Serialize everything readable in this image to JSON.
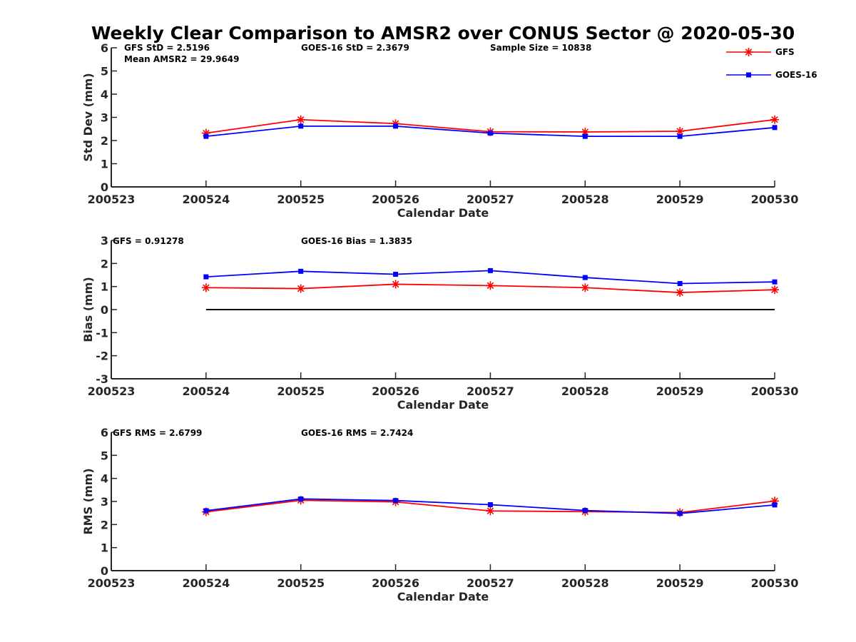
{
  "title": "Weekly Clear Comparison to AMSR2 over CONUS Sector @ 2020-05-30",
  "legend": {
    "position": "top-right",
    "entries": [
      {
        "name": "GFS",
        "color": "#ff0000",
        "marker": "asterisk"
      },
      {
        "name": "GOES-16",
        "color": "#0000ff",
        "marker": "square"
      }
    ]
  },
  "panels": [
    {
      "stats": [
        "GFS StD = 2.5196",
        "GOES-16 StD = 2.3679",
        "Sample Size = 10838",
        "Mean AMSR2 = 29.9649"
      ]
    },
    {
      "stats": [
        "GFS = 0.91278",
        "GOES-16 Bias  = 1.3835"
      ]
    },
    {
      "stats": [
        "GFS RMS = 2.6799",
        "GOES-16 RMS = 2.7424"
      ]
    }
  ],
  "chart_data": [
    {
      "type": "line",
      "xlabel": "Calendar Date",
      "ylabel": "Std Dev (mm)",
      "x_ticks": [
        "200523",
        "200524",
        "200525",
        "200526",
        "200527",
        "200528",
        "200529",
        "200530"
      ],
      "x": [
        "200524",
        "200525",
        "200526",
        "200527",
        "200528",
        "200529",
        "200530"
      ],
      "ylim": [
        0,
        6
      ],
      "yticks": [
        0,
        1,
        2,
        3,
        4,
        5,
        6
      ],
      "grid": false,
      "series": [
        {
          "name": "GFS",
          "color": "#ff0000",
          "values": [
            2.32,
            2.9,
            2.73,
            2.38,
            2.37,
            2.4,
            2.9
          ]
        },
        {
          "name": "GOES-16",
          "color": "#0000ff",
          "values": [
            2.18,
            2.62,
            2.62,
            2.32,
            2.18,
            2.18,
            2.56
          ]
        }
      ]
    },
    {
      "type": "line",
      "xlabel": "Calendar Date",
      "ylabel": "Bias (mm)",
      "x_ticks": [
        "200523",
        "200524",
        "200525",
        "200526",
        "200527",
        "200528",
        "200529",
        "200530"
      ],
      "x": [
        "200524",
        "200525",
        "200526",
        "200527",
        "200528",
        "200529",
        "200530"
      ],
      "ylim": [
        -3,
        3
      ],
      "yticks": [
        -3,
        -2,
        -1,
        0,
        1,
        2,
        3
      ],
      "grid": false,
      "reference_line": 0,
      "series": [
        {
          "name": "GFS",
          "color": "#ff0000",
          "values": [
            0.95,
            0.91,
            1.1,
            1.04,
            0.95,
            0.74,
            0.86
          ]
        },
        {
          "name": "GOES-16",
          "color": "#0000ff",
          "values": [
            1.42,
            1.66,
            1.53,
            1.69,
            1.39,
            1.13,
            1.2
          ]
        }
      ]
    },
    {
      "type": "line",
      "xlabel": "Calendar Date",
      "ylabel": "RMS (mm)",
      "x_ticks": [
        "200523",
        "200524",
        "200525",
        "200526",
        "200527",
        "200528",
        "200529",
        "200530"
      ],
      "x": [
        "200524",
        "200525",
        "200526",
        "200527",
        "200528",
        "200529",
        "200530"
      ],
      "ylim": [
        0,
        6
      ],
      "yticks": [
        0,
        1,
        2,
        3,
        4,
        5,
        6
      ],
      "grid": false,
      "series": [
        {
          "name": "GFS",
          "color": "#ff0000",
          "values": [
            2.55,
            3.05,
            2.98,
            2.59,
            2.56,
            2.52,
            3.02
          ]
        },
        {
          "name": "GOES-16",
          "color": "#0000ff",
          "values": [
            2.6,
            3.11,
            3.04,
            2.86,
            2.61,
            2.48,
            2.85
          ]
        }
      ]
    }
  ]
}
